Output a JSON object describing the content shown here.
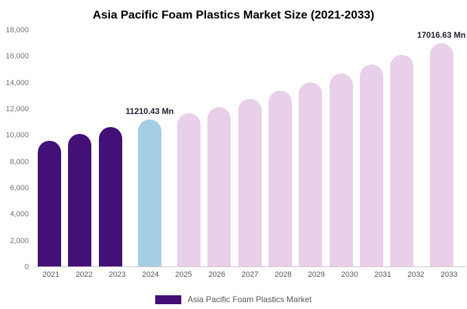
{
  "title": "Asia Pacific Foam Plastics Market Size (2021-2033)",
  "legend": {
    "label": "Asia Pacific Foam Plastics Market"
  },
  "colors": {
    "historical": "#431078",
    "current": "#a4cee2",
    "forecast": "#e9cfe9",
    "axis_text": "#737373",
    "x_label_text": "#555555",
    "annotation_text": "#1c1c2e",
    "baseline": "#c9c9c9"
  },
  "chart_data": {
    "type": "bar",
    "title": "Asia Pacific Foam Plastics Market Size (2021-2033)",
    "categories": [
      "2021",
      "2022",
      "2023",
      "2024",
      "2025",
      "2026",
      "2027",
      "2028",
      "2029",
      "2030",
      "2031",
      "2032",
      "2033"
    ],
    "values": [
      9600,
      10100,
      10600,
      11210.43,
      11650,
      12150,
      12750,
      13400,
      14000,
      14700,
      15400,
      16100,
      17016.63
    ],
    "roles": [
      "historical",
      "historical",
      "historical",
      "current",
      "forecast",
      "forecast",
      "forecast",
      "forecast",
      "forecast",
      "forecast",
      "forecast",
      "forecast",
      "forecast"
    ],
    "annotations": {
      "2024": "11210.43 Mn",
      "2033": "17016.63 Mn"
    },
    "xlabel": "",
    "ylabel": "",
    "ylim": [
      0,
      18000
    ],
    "yticks": [
      0,
      2000,
      4000,
      6000,
      8000,
      10000,
      12000,
      14000,
      16000,
      18000
    ],
    "ytick_labels": [
      "0",
      "2,000",
      "4,000",
      "6,000",
      "8,000",
      "10,000",
      "12,000",
      "14,000",
      "16,000",
      "18,000"
    ],
    "grid": false,
    "legend_position": "bottom"
  }
}
